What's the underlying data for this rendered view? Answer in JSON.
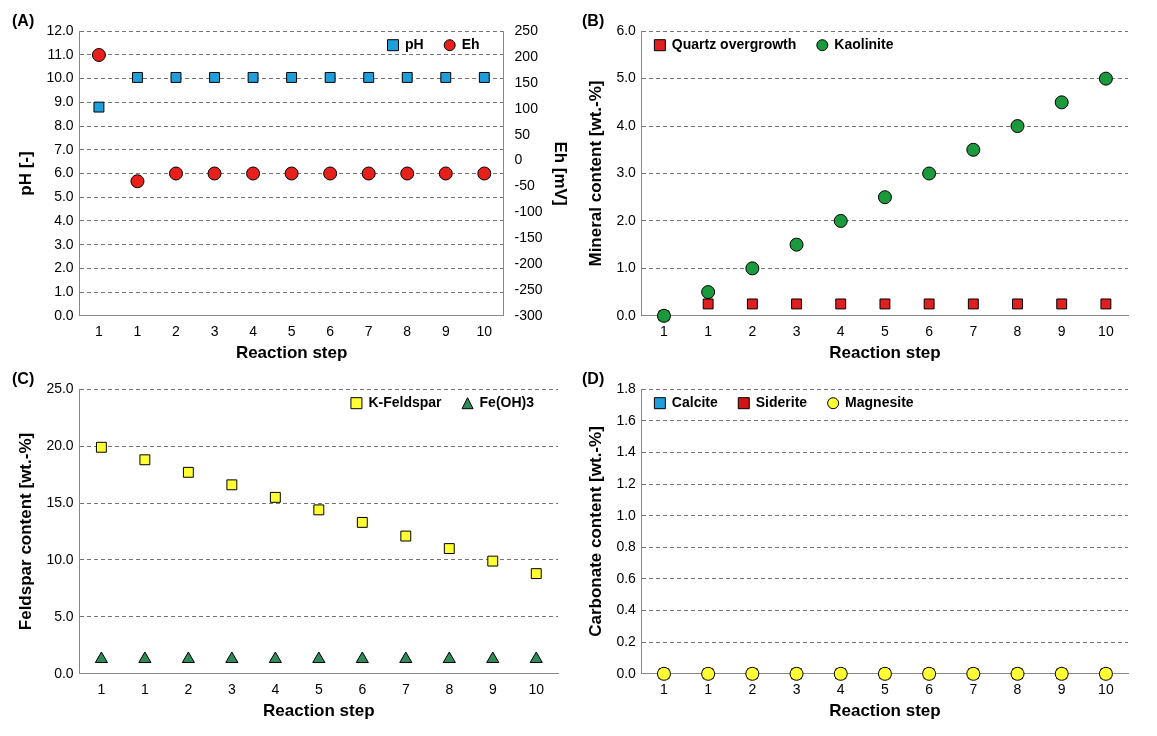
{
  "chart_data": [
    {
      "type": "scatter",
      "title": "(A)",
      "xlabel": "Reaction step",
      "ylabel": "pH [-]",
      "y2label": "Eh [mV]",
      "categories": [
        "1",
        "1",
        "2",
        "3",
        "4",
        "5",
        "6",
        "7",
        "8",
        "9",
        "10"
      ],
      "series": [
        {
          "name": "pH",
          "color": "#1e9fdc",
          "marker": "square",
          "values": [
            8.8,
            10.05,
            10.05,
            10.05,
            10.05,
            10.05,
            10.05,
            10.05,
            10.05,
            10.05,
            10.05
          ]
        },
        {
          "name": "Eh",
          "color": "#e8201c",
          "marker": "circle",
          "axis": "y2",
          "values": [
            204,
            -40,
            -25,
            -25,
            -25,
            -25,
            -25,
            -25,
            -25,
            -25,
            -25
          ]
        }
      ],
      "ylim": [
        0,
        12
      ],
      "yticks": [
        {
          "value": 0,
          "label": "0.0"
        },
        {
          "value": 1,
          "label": "1.0"
        },
        {
          "value": 2,
          "label": "2.0"
        },
        {
          "value": 3,
          "label": "3.0"
        },
        {
          "value": 4,
          "label": "4.0"
        },
        {
          "value": 5,
          "label": "5.0"
        },
        {
          "value": 6,
          "label": "6.0"
        },
        {
          "value": 7,
          "label": "7.0"
        },
        {
          "value": 8,
          "label": "8.0"
        },
        {
          "value": 9,
          "label": "9.0"
        },
        {
          "value": 10,
          "label": "10.0"
        },
        {
          "value": 11,
          "label": "11.0"
        },
        {
          "value": 12,
          "label": "12.0"
        }
      ],
      "y2lim": [
        -300,
        250
      ],
      "y2ticks": [
        -300,
        -250,
        -200,
        -150,
        -100,
        -50,
        0,
        50,
        100,
        150,
        200,
        250
      ],
      "grid": "y",
      "legend": "top right"
    },
    {
      "type": "scatter",
      "title": "(B)",
      "xlabel": "Reaction step",
      "ylabel": "Mineral content [wt.-%]",
      "categories": [
        "1",
        "1",
        "2",
        "3",
        "4",
        "5",
        "6",
        "7",
        "8",
        "9",
        "10"
      ],
      "series": [
        {
          "name": "Quartz overgrowth",
          "color": "#e02020",
          "marker": "square",
          "values": [
            0,
            0.25,
            0.25,
            0.25,
            0.25,
            0.25,
            0.25,
            0.25,
            0.25,
            0.25,
            0.25
          ]
        },
        {
          "name": "Kaolinite",
          "color": "#1a9a3c",
          "marker": "circle",
          "values": [
            0,
            0.5,
            1.0,
            1.5,
            2.0,
            2.5,
            3.0,
            3.5,
            4.0,
            4.5,
            5.0
          ]
        }
      ],
      "ylim": [
        0,
        6
      ],
      "yticks": [
        {
          "value": 0,
          "label": "0.0"
        },
        {
          "value": 1,
          "label": "1.0"
        },
        {
          "value": 2,
          "label": "2.0"
        },
        {
          "value": 3,
          "label": "3.0"
        },
        {
          "value": 4,
          "label": "4.0"
        },
        {
          "value": 5,
          "label": "5.0"
        },
        {
          "value": 6,
          "label": "6.0"
        }
      ],
      "grid": "y",
      "legend": "top left"
    },
    {
      "type": "scatter",
      "title": "(C)",
      "xlabel": "Reaction step",
      "ylabel": "Feldspar content [wt.-%]",
      "categories": [
        "1",
        "1",
        "2",
        "3",
        "4",
        "5",
        "6",
        "7",
        "8",
        "9",
        "10"
      ],
      "series": [
        {
          "name": "K-Feldspar",
          "color": "#ffff33",
          "marker": "square",
          "values": [
            19.9,
            18.8,
            17.7,
            16.6,
            15.5,
            14.4,
            13.3,
            12.1,
            11.0,
            9.9,
            8.8
          ]
        },
        {
          "name": "Fe(OH)3",
          "color": "#2e8b57",
          "marker": "triangle",
          "values": [
            1.3,
            1.3,
            1.3,
            1.3,
            1.3,
            1.3,
            1.3,
            1.3,
            1.3,
            1.3,
            1.3
          ]
        }
      ],
      "ylim": [
        0,
        25
      ],
      "yticks": [
        {
          "value": 0,
          "label": "0.0"
        },
        {
          "value": 5,
          "label": "5.0"
        },
        {
          "value": 10,
          "label": "10.0"
        },
        {
          "value": 15,
          "label": "15.0"
        },
        {
          "value": 20,
          "label": "20.0"
        },
        {
          "value": 25,
          "label": "25.0"
        }
      ],
      "grid": "y",
      "legend": "top right"
    },
    {
      "type": "scatter",
      "title": "(D)",
      "xlabel": "Reaction step",
      "ylabel": "Carbonate content [wt.-%]",
      "categories": [
        "1",
        "1",
        "2",
        "3",
        "4",
        "5",
        "6",
        "7",
        "8",
        "9",
        "10"
      ],
      "series": [
        {
          "name": "Calcite",
          "color": "#1e9fdc",
          "marker": "square",
          "values": [
            null,
            null,
            null,
            null,
            null,
            null,
            null,
            null,
            null,
            null,
            null
          ]
        },
        {
          "name": "Siderite",
          "color": "#d41414",
          "marker": "square",
          "values": [
            0,
            0,
            0,
            0,
            0,
            0,
            0,
            0,
            0,
            0,
            0
          ]
        },
        {
          "name": "Magnesite",
          "color": "#ffff33",
          "marker": "circle",
          "values": [
            0,
            0,
            0,
            0,
            0,
            0,
            0,
            0,
            0,
            0,
            0
          ]
        }
      ],
      "ylim": [
        0,
        1.8
      ],
      "yticks": [
        {
          "value": 0,
          "label": "0.0"
        },
        {
          "value": 0.2,
          "label": "0.2"
        },
        {
          "value": 0.4,
          "label": "0.4"
        },
        {
          "value": 0.6,
          "label": "0.6"
        },
        {
          "value": 0.8,
          "label": "0.8"
        },
        {
          "value": 1.0,
          "label": "1.0"
        },
        {
          "value": 1.2,
          "label": "1.2"
        },
        {
          "value": 1.4,
          "label": "1.4"
        },
        {
          "value": 1.6,
          "label": "1.6"
        },
        {
          "value": 1.8,
          "label": "1.8"
        }
      ],
      "grid": "y",
      "legend": "top left"
    }
  ]
}
